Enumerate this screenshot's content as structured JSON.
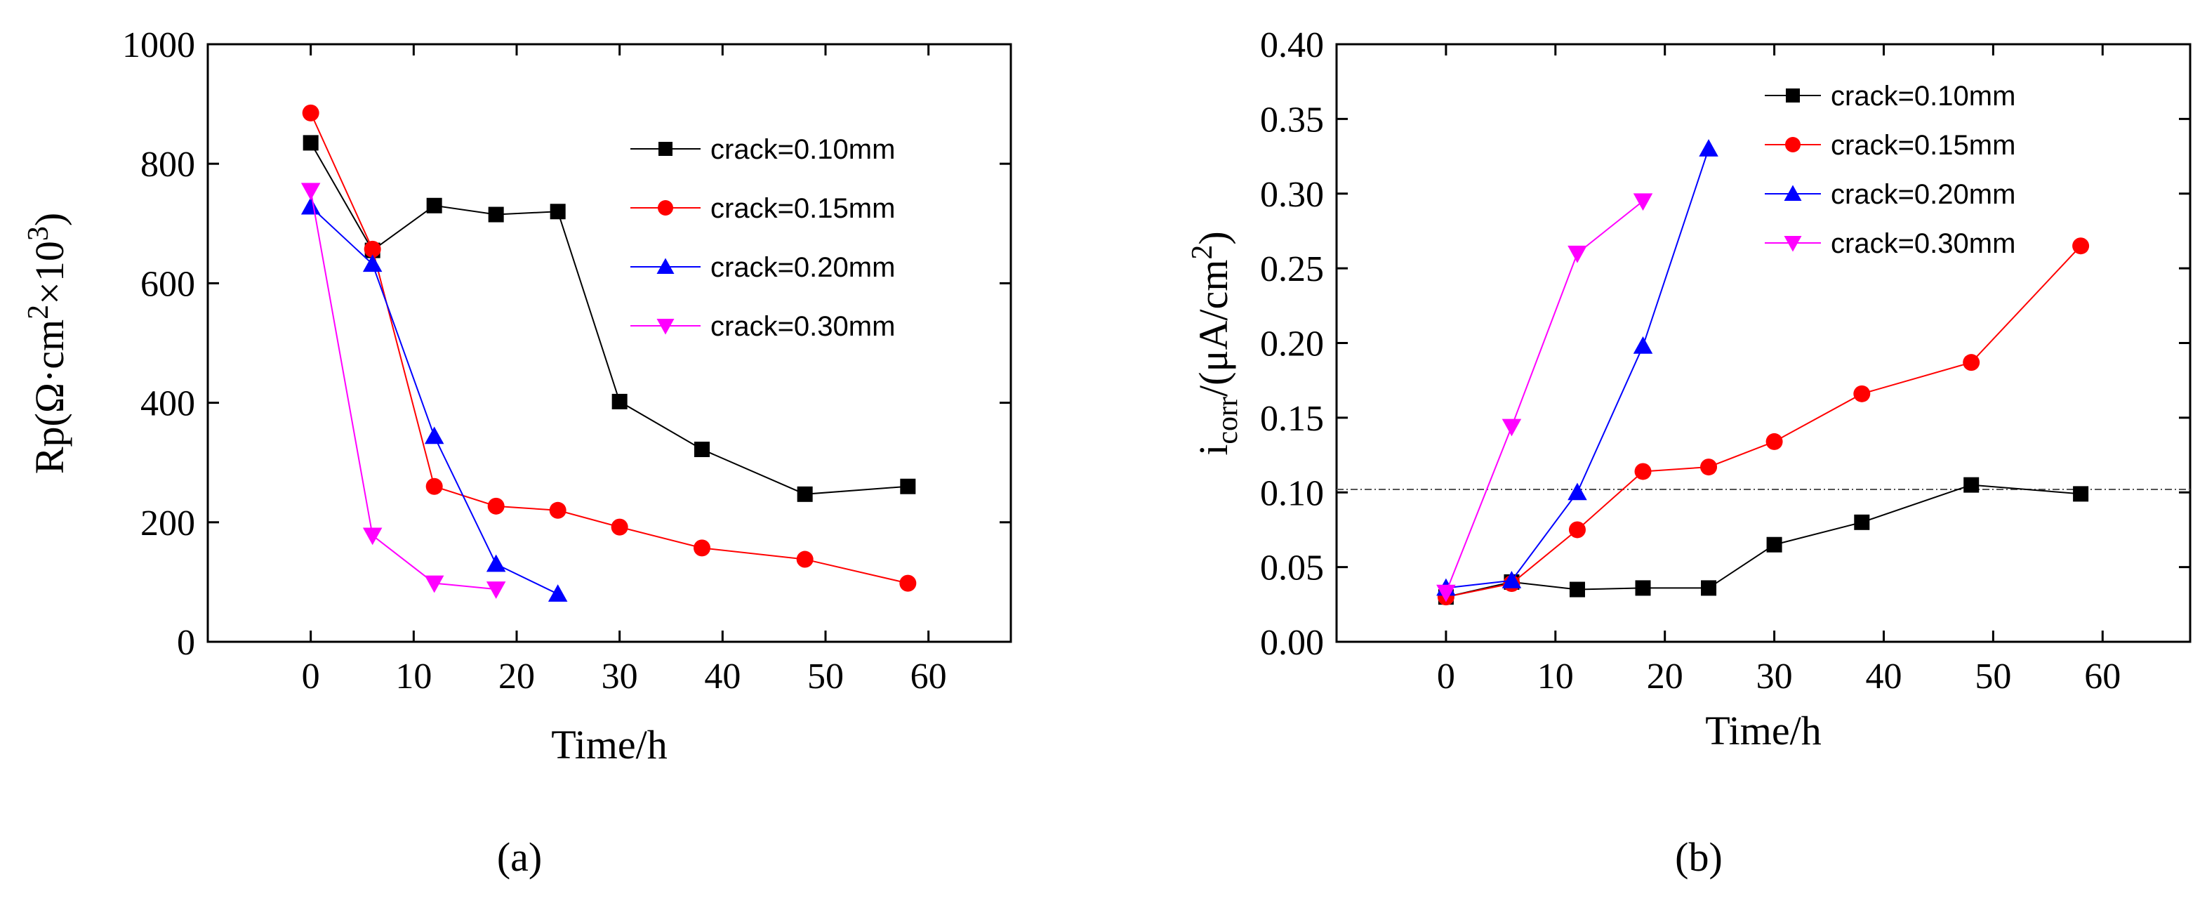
{
  "chart_data": [
    {
      "type": "line",
      "id": "a",
      "caption": "(a)",
      "xlabel": "Time/h",
      "ylabel": {
        "main": "Rp(Ω·cm",
        "sup1": "2",
        "mid": "×10",
        "sup2": "3",
        "end": ")"
      },
      "xlim": [
        -10,
        68
      ],
      "ylim": [
        0,
        1000
      ],
      "xticks": [
        0,
        10,
        20,
        30,
        40,
        50,
        60
      ],
      "yticks": [
        0,
        200,
        400,
        600,
        800,
        1000
      ],
      "xtick_labels": [
        "0",
        "10",
        "20",
        "30",
        "40",
        "50",
        "60"
      ],
      "ytick_labels": [
        "0",
        "200",
        "400",
        "600",
        "800",
        "1000"
      ],
      "legend_position": "top-right",
      "series": [
        {
          "name": "crack=0.10mm",
          "color": "#000000",
          "marker": "square",
          "x": [
            0,
            6,
            12,
            18,
            24,
            30,
            38,
            48,
            58
          ],
          "y": [
            835,
            655,
            730,
            715,
            720,
            402,
            322,
            247,
            260
          ]
        },
        {
          "name": "crack=0.15mm",
          "color": "#ff0000",
          "marker": "circle",
          "x": [
            0,
            6,
            12,
            18,
            24,
            30,
            38,
            48,
            58
          ],
          "y": [
            885,
            657,
            260,
            227,
            220,
            192,
            157,
            138,
            98
          ]
        },
        {
          "name": "crack=0.20mm",
          "color": "#0000ff",
          "marker": "triangle-up",
          "x": [
            0,
            6,
            12,
            18,
            24
          ],
          "y": [
            728,
            632,
            344,
            130,
            80
          ]
        },
        {
          "name": "crack=0.30mm",
          "color": "#ff00ff",
          "marker": "triangle-down",
          "x": [
            0,
            6,
            12,
            18
          ],
          "y": [
            755,
            178,
            98,
            88
          ]
        }
      ]
    },
    {
      "type": "line",
      "id": "b",
      "caption": "(b)",
      "xlabel": "Time/h",
      "ylabel": {
        "main": "i",
        "sub": "corr",
        "mid": "/(μA/cm",
        "sup": "2",
        "end": ")"
      },
      "xlim": [
        -10,
        68
      ],
      "ylim": [
        0,
        0.4
      ],
      "xticks": [
        0,
        10,
        20,
        30,
        40,
        50,
        60
      ],
      "yticks": [
        0,
        0.05,
        0.1,
        0.15,
        0.2,
        0.25,
        0.3,
        0.35,
        0.4
      ],
      "xtick_labels": [
        "0",
        "10",
        "20",
        "30",
        "40",
        "50",
        "60"
      ],
      "ytick_labels": [
        "0.00",
        "0.05",
        "0.10",
        "0.15",
        "0.20",
        "0.25",
        "0.30",
        "0.35",
        "0.40"
      ],
      "reference_line_y": 0.102,
      "legend_position": "top-right",
      "series": [
        {
          "name": "crack=0.10mm",
          "color": "#000000",
          "marker": "square",
          "x": [
            0,
            6,
            12,
            18,
            24,
            30,
            38,
            48,
            58
          ],
          "y": [
            0.03,
            0.04,
            0.035,
            0.036,
            0.036,
            0.065,
            0.08,
            0.105,
            0.099
          ]
        },
        {
          "name": "crack=0.15mm",
          "color": "#ff0000",
          "marker": "circle",
          "x": [
            0,
            6,
            12,
            18,
            24,
            30,
            38,
            48,
            58
          ],
          "y": [
            0.03,
            0.039,
            0.075,
            0.114,
            0.117,
            0.134,
            0.166,
            0.187,
            0.265
          ]
        },
        {
          "name": "crack=0.20mm",
          "color": "#0000ff",
          "marker": "triangle-up",
          "x": [
            0,
            6,
            12,
            18,
            24
          ],
          "y": [
            0.036,
            0.041,
            0.1,
            0.198,
            0.33
          ]
        },
        {
          "name": "crack=0.30mm",
          "color": "#ff00ff",
          "marker": "triangle-down",
          "x": [
            0,
            6,
            12,
            18
          ],
          "y": [
            0.033,
            0.144,
            0.26,
            0.295
          ]
        }
      ]
    }
  ]
}
